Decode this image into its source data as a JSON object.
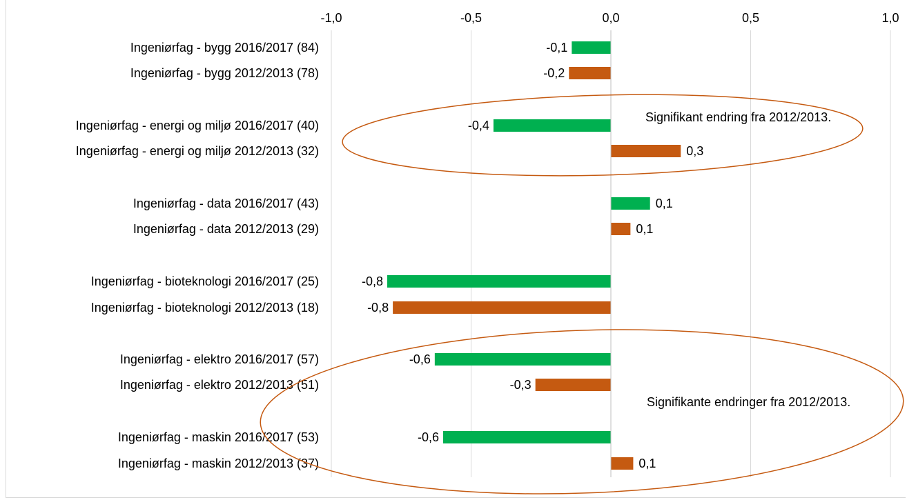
{
  "chart_data": {
    "type": "bar",
    "orientation": "horizontal",
    "title": "",
    "xlabel": "",
    "ylabel": "",
    "xlim": [
      -1.0,
      1.0
    ],
    "x_ticks": [
      "-1,0",
      "-0,5",
      "0,0",
      "0,5",
      "1,0"
    ],
    "x_tick_values": [
      -1.0,
      -0.5,
      0.0,
      0.5,
      1.0
    ],
    "x_axis_position": "top",
    "grid": true,
    "legend": "none",
    "series_colors": {
      "2016/2017": "#00b050",
      "2012/2013": "#c55a11"
    },
    "categories": [
      {
        "label": "Ingeniørfag - bygg 2016/2017 (84)",
        "value": -0.14,
        "value_label": "-0,1",
        "period": "2016/2017"
      },
      {
        "label": "Ingeniørfag - bygg 2012/2013 (78)",
        "value": -0.15,
        "value_label": "-0,2",
        "period": "2012/2013"
      },
      {
        "label": "Ingeniørfag - energi og miljø 2016/2017 (40)",
        "value": -0.42,
        "value_label": "-0,4",
        "period": "2016/2017"
      },
      {
        "label": "Ingeniørfag - energi og miljø 2012/2013 (32)",
        "value": 0.25,
        "value_label": "0,3",
        "period": "2012/2013"
      },
      {
        "label": "Ingeniørfag - data 2016/2017 (43)",
        "value": 0.14,
        "value_label": "0,1",
        "period": "2016/2017"
      },
      {
        "label": "Ingeniørfag - data 2012/2013 (29)",
        "value": 0.07,
        "value_label": "0,1",
        "period": "2012/2013"
      },
      {
        "label": "Ingeniørfag - bioteknologi 2016/2017 (25)",
        "value": -0.8,
        "value_label": "-0,8",
        "period": "2016/2017"
      },
      {
        "label": "Ingeniørfag - bioteknologi 2012/2013 (18)",
        "value": -0.78,
        "value_label": "-0,8",
        "period": "2012/2013"
      },
      {
        "label": "Ingeniørfag - elektro 2016/2017 (57)",
        "value": -0.63,
        "value_label": "-0,6",
        "period": "2016/2017"
      },
      {
        "label": "Ingeniørfag - elektro 2012/2013 (51)",
        "value": -0.27,
        "value_label": "-0,3",
        "period": "2012/2013"
      },
      {
        "label": "Ingeniørfag - maskin 2016/2017 (53)",
        "value": -0.6,
        "value_label": "-0,6",
        "period": "2016/2017"
      },
      {
        "label": "Ingeniørfag - maskin 2012/2013 (37)",
        "value": 0.08,
        "value_label": "0,1",
        "period": "2012/2013"
      }
    ],
    "annotations": [
      {
        "text": "Signifikant endring fra 2012/2013.",
        "encloses": [
          "Ingeniørfag - energi og miljø 2016/2017 (40)",
          "Ingeniørfag - energi og miljø 2012/2013 (32)"
        ],
        "shape": "ellipse",
        "color": "#c55a11"
      },
      {
        "text": "Signifikante endringer fra 2012/2013.",
        "encloses": [
          "Ingeniørfag - elektro 2016/2017 (57)",
          "Ingeniørfag - elektro 2012/2013 (51)",
          "Ingeniørfag - maskin 2016/2017 (53)",
          "Ingeniørfag - maskin 2012/2013 (37)"
        ],
        "shape": "ellipse",
        "color": "#c55a11"
      }
    ]
  }
}
